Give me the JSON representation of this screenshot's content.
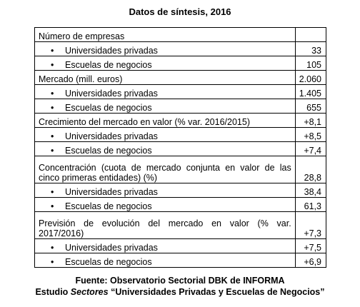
{
  "title": "Datos de síntesis, 2016",
  "rows": [
    {
      "label": "Número de empresas",
      "value": "",
      "sub": false
    },
    {
      "label": "Universidades privadas",
      "value": "33",
      "sub": true
    },
    {
      "label": "Escuelas de negocios",
      "value": "105",
      "sub": true
    },
    {
      "label": "Mercado (mill. euros)",
      "value": "2.060",
      "sub": false
    },
    {
      "label": "Universidades privadas",
      "value": "1.405",
      "sub": true
    },
    {
      "label": "Escuelas de negocios",
      "value": "655",
      "sub": true
    },
    {
      "label": "Crecimiento del mercado en valor (% var. 2016/2015)",
      "value": "+8,1",
      "sub": false
    },
    {
      "label": "Universidades privadas",
      "value": "+8,5",
      "sub": true
    },
    {
      "label": "Escuelas de negocios",
      "value": "+7,4",
      "sub": true
    },
    {
      "label": "Concentración (cuota de mercado conjunta en valor de las cinco primeras entidades) (%)",
      "value": "28,8",
      "sub": false
    },
    {
      "label": "Universidades privadas",
      "value": "38,4",
      "sub": true
    },
    {
      "label": "Escuelas de negocios",
      "value": "61,3",
      "sub": true
    },
    {
      "label": "Previsión de evolución del mercado en valor (% var. 2017/2016)",
      "value": "+7,3",
      "sub": false
    },
    {
      "label": "Universidades privadas",
      "value": "+7,5",
      "sub": true
    },
    {
      "label": "Escuelas de negocios",
      "value": "+6,9",
      "sub": true
    }
  ],
  "bullet": "•",
  "source": {
    "line1": "Fuente: Observatorio Sectorial DBK de INFORMA",
    "line2_prefix": "Estudio ",
    "line2_italic": "Sectores",
    "line2_suffix": " “Universidades Privadas y Escuelas de Negocios”"
  }
}
